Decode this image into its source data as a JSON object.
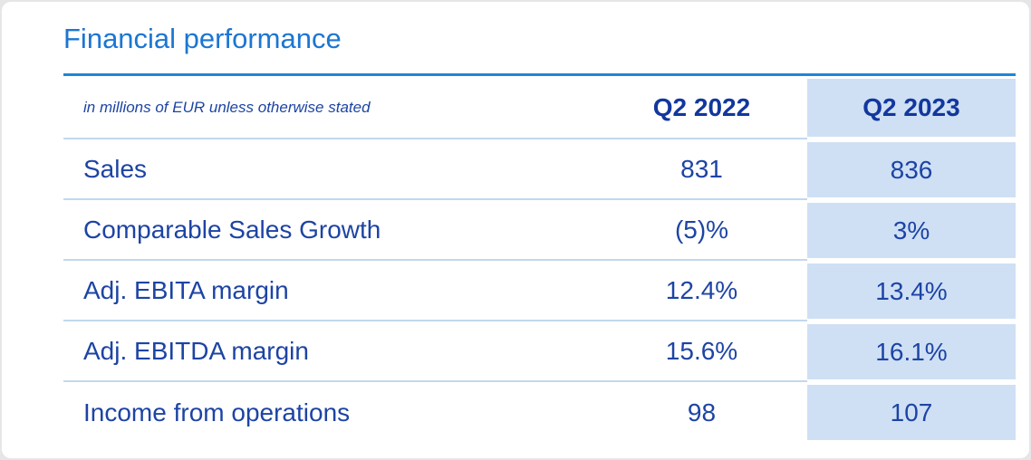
{
  "chart_data": {
    "type": "table",
    "title": "Financial performance",
    "subtitle": "in millions of EUR unless otherwise stated",
    "columns": [
      "Q2 2022",
      "Q2 2023"
    ],
    "highlight_column": "Q2 2023",
    "rows": [
      {
        "label": "Sales",
        "q2_2022": "831",
        "q2_2023": "836"
      },
      {
        "label": "Comparable Sales Growth",
        "q2_2022": "(5)%",
        "q2_2023": "3%"
      },
      {
        "label": "Adj. EBITA margin",
        "q2_2022": "12.4%",
        "q2_2023": "13.4%"
      },
      {
        "label": "Adj. EBITDA margin",
        "q2_2022": "15.6%",
        "q2_2023": "16.1%"
      },
      {
        "label": "Income from operations",
        "q2_2022": "98",
        "q2_2023": "107"
      }
    ]
  },
  "colors": {
    "title_blue": "#1b76d2",
    "underline_blue": "#1e86d6",
    "header_navy": "#12379d",
    "body_navy": "#1d44a4",
    "highlight_fill": "#cfe0f5",
    "separator": "#c3d8ec",
    "card_bg": "#ffffff",
    "frame_bg": "#e6e6e6"
  }
}
